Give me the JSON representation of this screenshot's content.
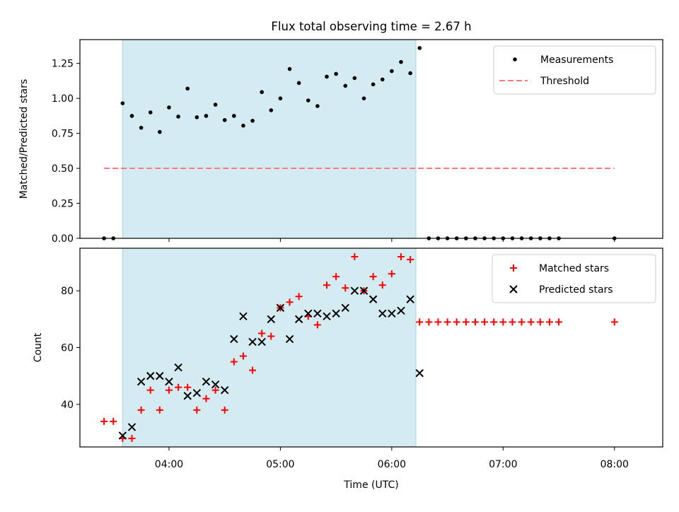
{
  "title": "Flux total observing time = 2.67 h",
  "chart_data": [
    {
      "type": "scatter",
      "panel": "top",
      "title": "Flux total observing time = 2.67 h",
      "xlabel": "",
      "ylabel": "Matched/Predicted stars",
      "xlim": [
        "03:12",
        "08:26"
      ],
      "ylim": [
        0,
        1.42
      ],
      "yticks": [
        "0.00",
        "0.25",
        "0.50",
        "0.75",
        "1.00",
        "1.25"
      ],
      "shaded_span": [
        "03:35",
        "06:13"
      ],
      "shade_color": "#d4ebf1",
      "legend": {
        "placement": "top-right",
        "entries": [
          "Measurements",
          "Threshold"
        ]
      },
      "threshold": {
        "name": "Threshold",
        "value": 0.5,
        "x_range": [
          "03:25",
          "08:00"
        ],
        "color": "#ff7a7a"
      },
      "series": [
        {
          "name": "Measurements",
          "marker": "dot",
          "color": "#000000",
          "points": [
            [
              "03:25",
              0.0
            ],
            [
              "03:30",
              0.0
            ],
            [
              "03:35",
              0.965
            ],
            [
              "03:40",
              0.875
            ],
            [
              "03:45",
              0.79
            ],
            [
              "03:50",
              0.9
            ],
            [
              "03:55",
              0.76
            ],
            [
              "04:00",
              0.935
            ],
            [
              "04:05",
              0.87
            ],
            [
              "04:10",
              1.07
            ],
            [
              "04:15",
              0.865
            ],
            [
              "04:20",
              0.875
            ],
            [
              "04:25",
              0.955
            ],
            [
              "04:30",
              0.845
            ],
            [
              "04:35",
              0.875
            ],
            [
              "04:40",
              0.805
            ],
            [
              "04:45",
              0.84
            ],
            [
              "04:50",
              1.045
            ],
            [
              "04:55",
              0.915
            ],
            [
              "05:00",
              1.0
            ],
            [
              "05:05",
              1.21
            ],
            [
              "05:10",
              1.11
            ],
            [
              "05:15",
              0.985
            ],
            [
              "05:20",
              0.945
            ],
            [
              "05:25",
              1.155
            ],
            [
              "05:30",
              1.175
            ],
            [
              "05:35",
              1.09
            ],
            [
              "05:40",
              1.145
            ],
            [
              "05:45",
              1.0
            ],
            [
              "05:50",
              1.1
            ],
            [
              "05:55",
              1.135
            ],
            [
              "06:00",
              1.195
            ],
            [
              "06:05",
              1.26
            ],
            [
              "06:10",
              1.18
            ],
            [
              "06:15",
              1.36
            ],
            [
              "06:20",
              0.0
            ],
            [
              "06:25",
              0.0
            ],
            [
              "06:30",
              0.0
            ],
            [
              "06:35",
              0.0
            ],
            [
              "06:40",
              0.0
            ],
            [
              "06:45",
              0.0
            ],
            [
              "06:50",
              0.0
            ],
            [
              "06:55",
              0.0
            ],
            [
              "07:00",
              0.0
            ],
            [
              "07:05",
              0.0
            ],
            [
              "07:10",
              0.0
            ],
            [
              "07:15",
              0.0
            ],
            [
              "07:20",
              0.0
            ],
            [
              "07:25",
              0.0
            ],
            [
              "07:30",
              0.0
            ],
            [
              "08:00",
              0.0
            ]
          ]
        }
      ]
    },
    {
      "type": "scatter",
      "panel": "bottom",
      "xlabel": "Time (UTC)",
      "ylabel": "Count",
      "xlim": [
        "03:12",
        "08:26"
      ],
      "ylim": [
        25,
        95
      ],
      "yticks": [
        "40",
        "60",
        "80"
      ],
      "xticks": [
        "04:00",
        "05:00",
        "06:00",
        "07:00",
        "08:00"
      ],
      "shaded_span": [
        "03:35",
        "06:13"
      ],
      "legend": {
        "placement": "top-right",
        "entries": [
          "Matched stars",
          "Predicted stars"
        ]
      },
      "series": [
        {
          "name": "Matched stars",
          "marker": "plus",
          "color": "#ff0000",
          "points": [
            [
              "03:25",
              34
            ],
            [
              "03:30",
              34
            ],
            [
              "03:35",
              28
            ],
            [
              "03:40",
              28
            ],
            [
              "03:45",
              38
            ],
            [
              "03:50",
              45
            ],
            [
              "03:55",
              38
            ],
            [
              "04:00",
              45
            ],
            [
              "04:05",
              46
            ],
            [
              "04:10",
              46
            ],
            [
              "04:15",
              38
            ],
            [
              "04:20",
              42
            ],
            [
              "04:25",
              45
            ],
            [
              "04:30",
              38
            ],
            [
              "04:35",
              55
            ],
            [
              "04:40",
              57
            ],
            [
              "04:45",
              52
            ],
            [
              "04:50",
              65
            ],
            [
              "04:55",
              64
            ],
            [
              "05:00",
              74
            ],
            [
              "05:05",
              76
            ],
            [
              "05:10",
              78
            ],
            [
              "05:15",
              71
            ],
            [
              "05:20",
              68
            ],
            [
              "05:25",
              82
            ],
            [
              "05:30",
              85
            ],
            [
              "05:35",
              81
            ],
            [
              "05:40",
              92
            ],
            [
              "05:45",
              80
            ],
            [
              "05:50",
              85
            ],
            [
              "05:55",
              82
            ],
            [
              "06:00",
              86
            ],
            [
              "06:05",
              92
            ],
            [
              "06:10",
              91
            ],
            [
              "06:15",
              69
            ],
            [
              "06:20",
              69
            ],
            [
              "06:25",
              69
            ],
            [
              "06:30",
              69
            ],
            [
              "06:35",
              69
            ],
            [
              "06:40",
              69
            ],
            [
              "06:45",
              69
            ],
            [
              "06:50",
              69
            ],
            [
              "06:55",
              69
            ],
            [
              "07:00",
              69
            ],
            [
              "07:05",
              69
            ],
            [
              "07:10",
              69
            ],
            [
              "07:15",
              69
            ],
            [
              "07:20",
              69
            ],
            [
              "07:25",
              69
            ],
            [
              "07:30",
              69
            ],
            [
              "08:00",
              69
            ]
          ]
        },
        {
          "name": "Predicted stars",
          "marker": "x",
          "color": "#000000",
          "points": [
            [
              "03:35",
              29
            ],
            [
              "03:40",
              32
            ],
            [
              "03:45",
              48
            ],
            [
              "03:50",
              50
            ],
            [
              "03:55",
              50
            ],
            [
              "04:00",
              48
            ],
            [
              "04:05",
              53
            ],
            [
              "04:10",
              43
            ],
            [
              "04:15",
              44
            ],
            [
              "04:20",
              48
            ],
            [
              "04:25",
              47
            ],
            [
              "04:30",
              45
            ],
            [
              "04:35",
              63
            ],
            [
              "04:40",
              71
            ],
            [
              "04:45",
              62
            ],
            [
              "04:50",
              62
            ],
            [
              "04:55",
              70
            ],
            [
              "05:00",
              74
            ],
            [
              "05:05",
              63
            ],
            [
              "05:10",
              70
            ],
            [
              "05:15",
              72
            ],
            [
              "05:20",
              72
            ],
            [
              "05:25",
              71
            ],
            [
              "05:30",
              72
            ],
            [
              "05:35",
              74
            ],
            [
              "05:40",
              80
            ],
            [
              "05:45",
              80
            ],
            [
              "05:50",
              77
            ],
            [
              "05:55",
              72
            ],
            [
              "06:00",
              72
            ],
            [
              "06:05",
              73
            ],
            [
              "06:10",
              77
            ],
            [
              "06:15",
              51
            ]
          ]
        }
      ]
    }
  ]
}
